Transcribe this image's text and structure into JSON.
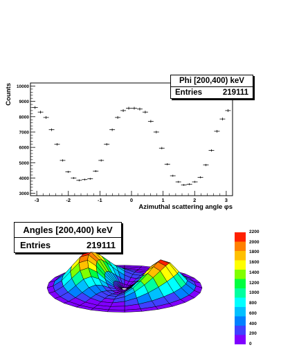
{
  "chart_data": [
    {
      "type": "scatter",
      "title": "Phi [200,400) keV",
      "xlabel": "Azimuthal scattering angle φs",
      "ylabel": "Counts",
      "xlim": [
        -3.2,
        3.2
      ],
      "ylim": [
        2850,
        10200
      ],
      "x_ticks": [
        -3,
        -2,
        -1,
        0,
        1,
        2,
        3
      ],
      "y_ticks": [
        3000,
        4000,
        5000,
        6000,
        7000,
        8000,
        9000,
        10000
      ],
      "grid": false,
      "error_bars": true,
      "x": [
        -3.0543,
        -2.8798,
        -2.7053,
        -2.5307,
        -2.3562,
        -2.1817,
        -2.0071,
        -1.8326,
        -1.6581,
        -1.4835,
        -1.309,
        -1.1345,
        -0.9599,
        -0.7854,
        -0.6109,
        -0.4363,
        -0.2618,
        -0.0873,
        0.0873,
        0.2618,
        0.4363,
        0.6109,
        0.7854,
        0.9599,
        1.1345,
        1.309,
        1.4835,
        1.6581,
        1.8326,
        2.0071,
        2.1817,
        2.3562,
        2.5307,
        2.7053,
        2.8798,
        3.0543
      ],
      "y": [
        8600,
        8300,
        7950,
        7150,
        6200,
        5150,
        4400,
        4000,
        3850,
        3900,
        3950,
        4450,
        5150,
        6200,
        7150,
        7950,
        8400,
        8550,
        8550,
        8500,
        8300,
        7700,
        7000,
        5950,
        4900,
        4150,
        3750,
        3550,
        3600,
        3750,
        4050,
        4850,
        5800,
        7050,
        7850,
        8400
      ],
      "stats": {
        "title": "Phi [200,400) keV",
        "entries_label": "Entries",
        "entries": "219111"
      }
    },
    {
      "type": "surface",
      "title": "Angles [200,400) keV",
      "stats": {
        "title": "Angles [200,400) keV",
        "entries_label": "Entries",
        "entries": "219111"
      },
      "zlim": [
        0,
        2200
      ],
      "colorbar_ticks": [
        0,
        200,
        400,
        600,
        800,
        1000,
        1200,
        1400,
        1600,
        1800,
        2000,
        2200
      ],
      "colormap": [
        "#8000ff",
        "#4040ff",
        "#0080ff",
        "#00c0ff",
        "#00ffff",
        "#00ffa0",
        "#00ff40",
        "#80ff00",
        "#ffff00",
        "#ffc000",
        "#ff8000",
        "#ff2000"
      ]
    }
  ]
}
